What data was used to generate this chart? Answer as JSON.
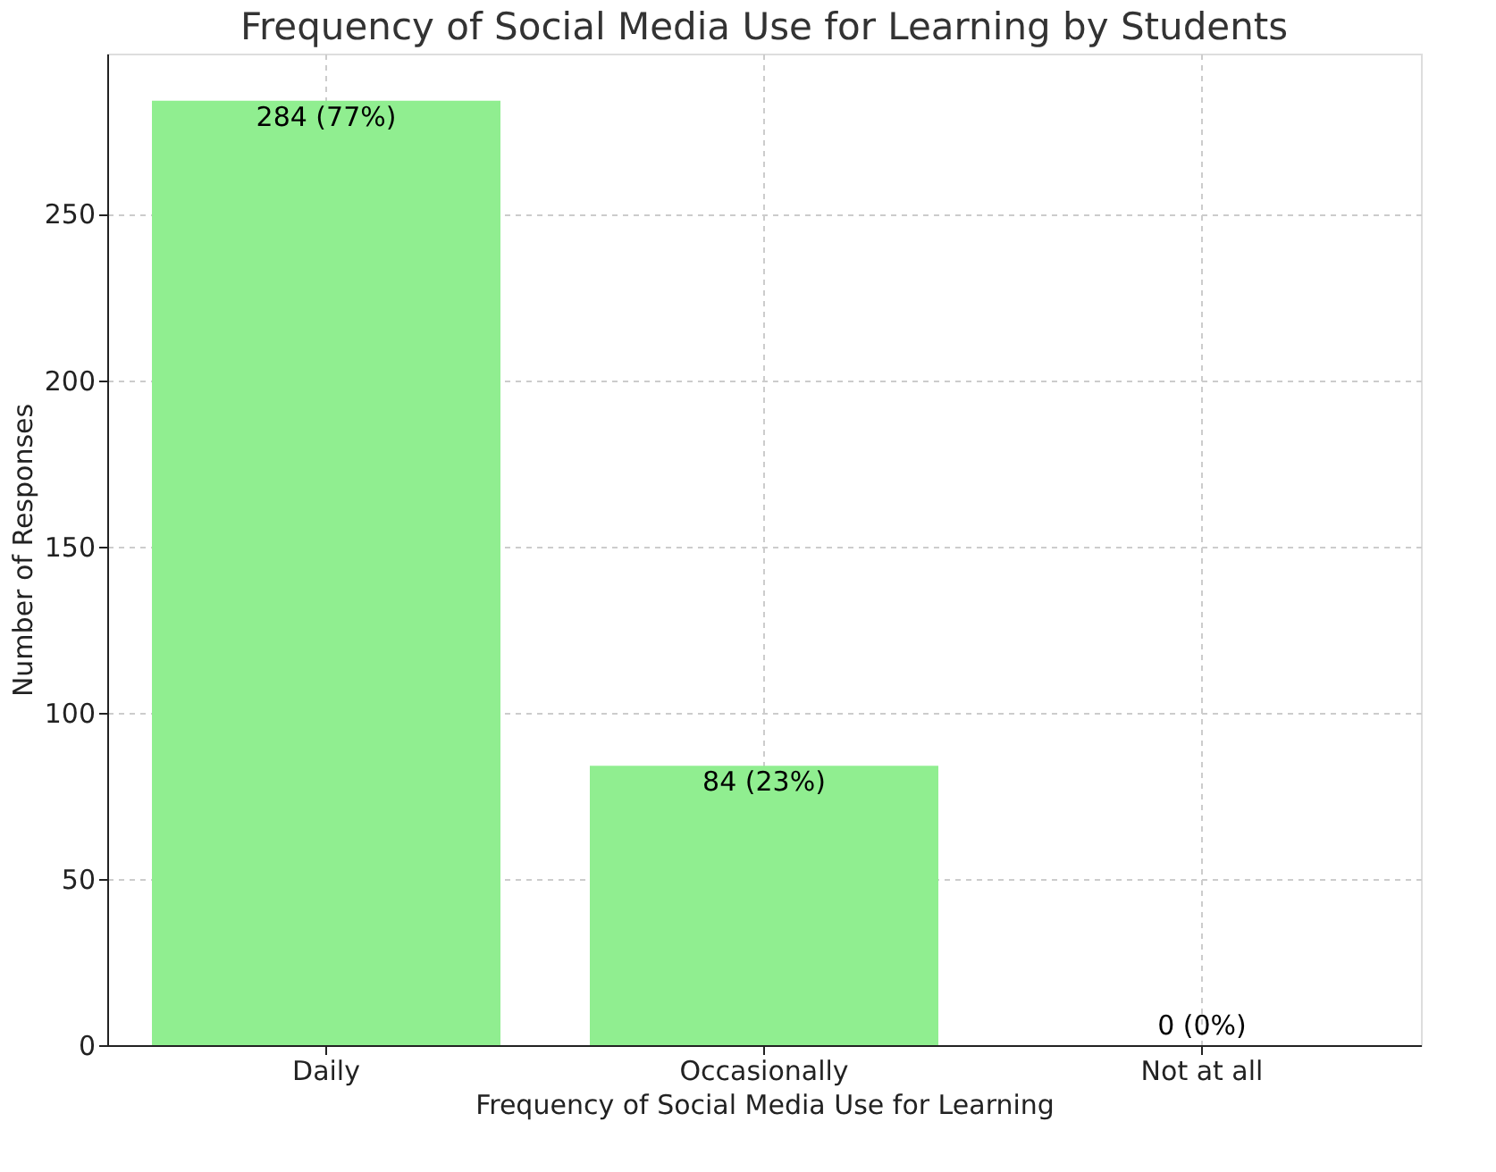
{
  "chart_data": {
    "type": "bar",
    "title": "Frequency of Social Media Use for Learning by Students",
    "xlabel": "Frequency of Social Media Use for Learning",
    "ylabel": "Number of Responses",
    "categories": [
      "Daily",
      "Occasionally",
      "Not at all"
    ],
    "values": [
      284,
      84,
      0
    ],
    "color": "#90ee90",
    "value_labels": [
      "284 (77%)",
      "84 (23%)",
      "0 (0%)"
    ],
    "ylim": [
      0,
      298.2
    ],
    "yticks": [
      0,
      50,
      100,
      150,
      200,
      250
    ],
    "grid": true
  }
}
